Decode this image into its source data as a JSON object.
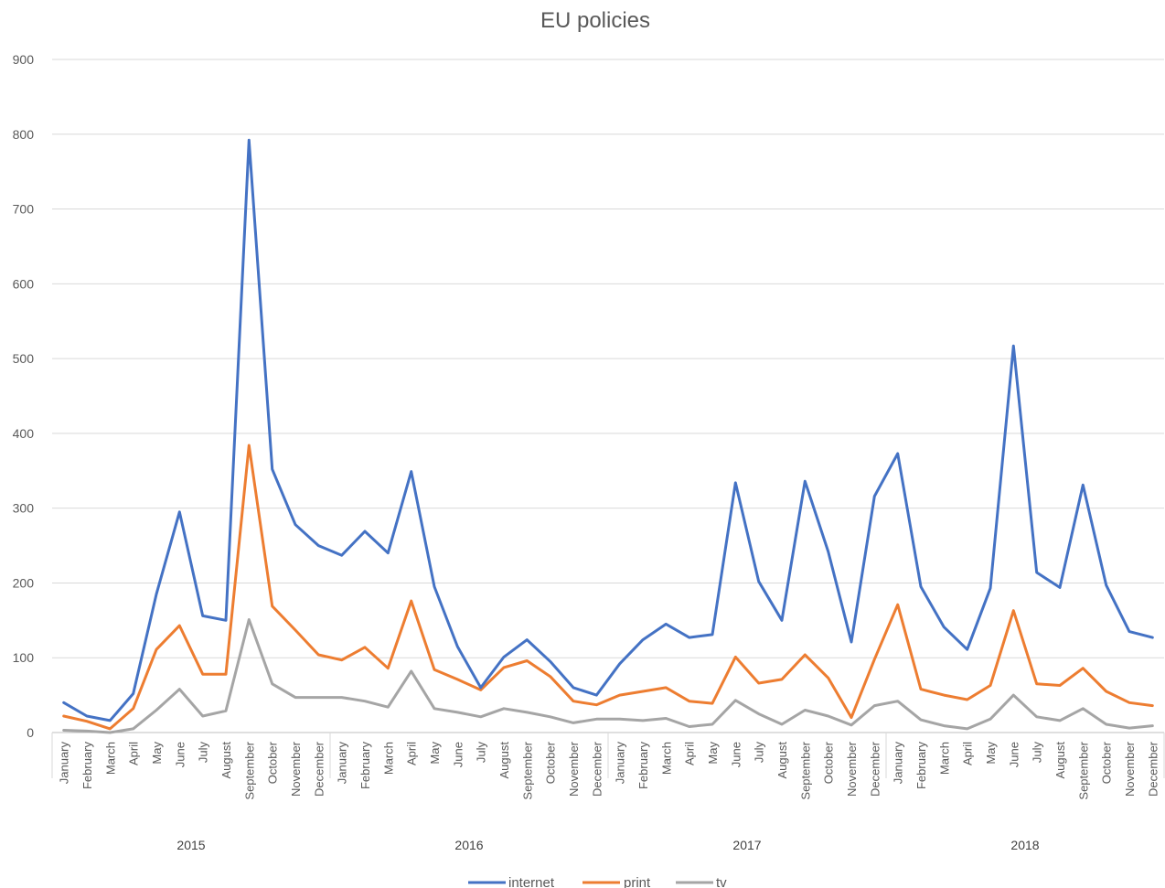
{
  "chart_data": {
    "type": "line",
    "title": "EU policies",
    "xlabel": "",
    "ylabel": "",
    "ylim": [
      0,
      900
    ],
    "yticks": [
      0,
      100,
      200,
      300,
      400,
      500,
      600,
      700,
      800,
      900
    ],
    "grid": true,
    "legend_position": "bottom",
    "months": [
      "January",
      "February",
      "March",
      "April",
      "May",
      "June",
      "July",
      "August",
      "September",
      "October",
      "November",
      "December"
    ],
    "years": [
      "2015",
      "2016",
      "2017",
      "2018"
    ],
    "series": [
      {
        "name": "internet",
        "color": "#4472C4",
        "values": [
          40,
          22,
          16,
          52,
          185,
          295,
          156,
          150,
          792,
          352,
          278,
          250,
          237,
          269,
          240,
          349,
          195,
          115,
          60,
          101,
          124,
          95,
          60,
          50,
          92,
          124,
          145,
          127,
          131,
          334,
          202,
          150,
          336,
          242,
          121,
          316,
          373,
          195,
          141,
          111,
          193,
          517,
          214,
          194,
          331,
          197,
          135,
          127
        ]
      },
      {
        "name": "print",
        "color": "#ED7D31",
        "values": [
          22,
          15,
          5,
          32,
          111,
          143,
          78,
          78,
          384,
          169,
          137,
          104,
          97,
          114,
          86,
          176,
          84,
          71,
          57,
          87,
          96,
          75,
          42,
          37,
          50,
          55,
          60,
          42,
          39,
          101,
          66,
          71,
          104,
          73,
          20,
          98,
          171,
          58,
          50,
          44,
          63,
          163,
          65,
          63,
          86,
          55,
          40,
          36
        ]
      },
      {
        "name": "tv",
        "color": "#A5A5A5",
        "values": [
          3,
          2,
          0,
          5,
          30,
          58,
          22,
          29,
          151,
          65,
          47,
          47,
          47,
          42,
          34,
          82,
          32,
          27,
          21,
          32,
          27,
          21,
          13,
          18,
          18,
          16,
          19,
          8,
          11,
          43,
          25,
          11,
          30,
          22,
          10,
          36,
          42,
          17,
          9,
          5,
          18,
          50,
          21,
          16,
          32,
          11,
          6,
          9
        ]
      }
    ]
  }
}
